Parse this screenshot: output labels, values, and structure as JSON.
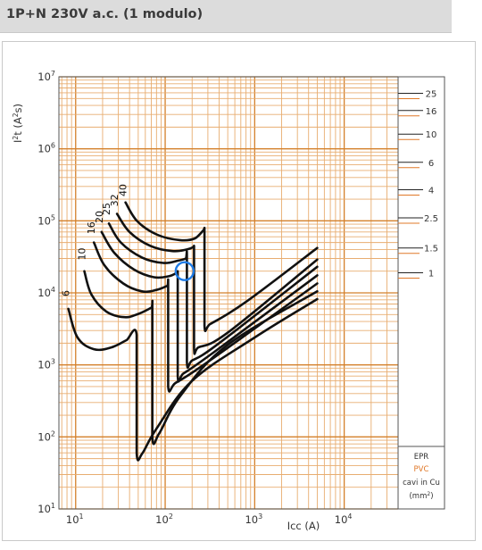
{
  "header": {
    "title": "1P+N 230V a.c. (1 modulo)"
  },
  "chart_data": {
    "type": "line",
    "x_scale": "log",
    "y_scale": "log",
    "xlim": [
      6.5,
      40000
    ],
    "ylim": [
      10,
      10000000
    ],
    "xlabel": "Icc (A)",
    "ylabel_main": "I",
    "ylabel_sup": "2",
    "ylabel_tail": "t (A",
    "ylabel_tail_sup": "2",
    "ylabel_end": "s)",
    "grid": true,
    "x_ticks": [
      {
        "value": 10,
        "base": "10",
        "exp": "1"
      },
      {
        "value": 100,
        "base": "10",
        "exp": "2"
      },
      {
        "value": 1000,
        "base": "10",
        "exp": "3"
      },
      {
        "value": 10000,
        "base": "10",
        "exp": "4"
      }
    ],
    "y_ticks": [
      {
        "value": 10,
        "base": "10",
        "exp": "1"
      },
      {
        "value": 100,
        "base": "10",
        "exp": "2"
      },
      {
        "value": 1000,
        "base": "10",
        "exp": "3"
      },
      {
        "value": 10000,
        "base": "10",
        "exp": "4"
      },
      {
        "value": 100000,
        "base": "10",
        "exp": "5"
      },
      {
        "value": 1000000,
        "base": "10",
        "exp": "6"
      },
      {
        "value": 10000000,
        "base": "10",
        "exp": "7"
      }
    ],
    "series": [
      {
        "name": "6",
        "label_at": [
          8.3,
          8200
        ],
        "points": [
          [
            8.3,
            6000
          ],
          [
            10.5,
            2400
          ],
          [
            16,
            1650
          ],
          [
            25,
            1750
          ],
          [
            37,
            2200
          ],
          [
            48,
            2600
          ],
          [
            48,
            60
          ],
          [
            55,
            58
          ],
          [
            80,
            130
          ],
          [
            200,
            600
          ],
          [
            1000,
            2400
          ],
          [
            5000,
            8200
          ]
        ]
      },
      {
        "name": "10",
        "label_at": [
          12.5,
          26000
        ],
        "points": [
          [
            12.5,
            20000
          ],
          [
            15,
            9500
          ],
          [
            22,
            5500
          ],
          [
            35,
            4600
          ],
          [
            50,
            5100
          ],
          [
            70,
            6200
          ],
          [
            72,
            6200
          ],
          [
            72,
            100
          ],
          [
            85,
            110
          ],
          [
            150,
            380
          ],
          [
            500,
            1900
          ],
          [
            5000,
            10500
          ]
        ]
      },
      {
        "name": "16",
        "label_at": [
          16,
          60000
        ],
        "points": [
          [
            16,
            50000
          ],
          [
            21,
            24000
          ],
          [
            34,
            13500
          ],
          [
            55,
            10500
          ],
          [
            80,
            11000
          ],
          [
            105,
            12500
          ],
          [
            108,
            13000
          ],
          [
            108,
            500
          ],
          [
            130,
            560
          ],
          [
            300,
            1100
          ],
          [
            5000,
            13500
          ]
        ]
      },
      {
        "name": "20",
        "label_at": [
          19.5,
          85000
        ],
        "points": [
          [
            19.5,
            70000
          ],
          [
            27,
            36000
          ],
          [
            45,
            21000
          ],
          [
            75,
            16500
          ],
          [
            110,
            17000
          ],
          [
            135,
            19000
          ],
          [
            138,
            20000
          ],
          [
            138,
            700
          ],
          [
            160,
            760
          ],
          [
            350,
            1500
          ],
          [
            5000,
            17500
          ]
        ]
      },
      {
        "name": "25",
        "label_at": [
          23.5,
          110000
        ],
        "points": [
          [
            23.5,
            92000
          ],
          [
            32,
            50000
          ],
          [
            55,
            31000
          ],
          [
            95,
            26000
          ],
          [
            140,
            28000
          ],
          [
            170,
            30000
          ],
          [
            175,
            32000
          ],
          [
            175,
            1100
          ],
          [
            200,
            1150
          ],
          [
            400,
            2000
          ],
          [
            5000,
            23000
          ]
        ]
      },
      {
        "name": "32",
        "label_at": [
          29,
          145000
        ],
        "points": [
          [
            29,
            125000
          ],
          [
            40,
            70000
          ],
          [
            68,
            45000
          ],
          [
            120,
            38000
          ],
          [
            175,
            40000
          ],
          [
            205,
            43000
          ],
          [
            210,
            45000
          ],
          [
            210,
            1700
          ],
          [
            235,
            1750
          ],
          [
            500,
            2800
          ],
          [
            5000,
            29000
          ]
        ]
      },
      {
        "name": "40",
        "label_at": [
          36,
          200000
        ],
        "points": [
          [
            36,
            180000
          ],
          [
            49,
            98000
          ],
          [
            82,
            64000
          ],
          [
            145,
            54000
          ],
          [
            215,
            57000
          ],
          [
            270,
            75000
          ],
          [
            275,
            80000
          ],
          [
            275,
            3500
          ],
          [
            320,
            3700
          ],
          [
            800,
            7500
          ],
          [
            5000,
            42000
          ]
        ]
      }
    ],
    "annotation": {
      "type": "circle",
      "x": 165,
      "y": 20000
    },
    "cable_scale": {
      "marks": [
        {
          "label": "25",
          "value": 5900000
        },
        {
          "label": "16",
          "value": 3400000
        },
        {
          "label": "10",
          "value": 1600000
        },
        {
          "label": "6",
          "value": 650000
        },
        {
          "label": "4",
          "value": 270000
        },
        {
          "label": "2.5",
          "value": 110000
        },
        {
          "label": "1.5",
          "value": 42000
        },
        {
          "label": "1",
          "value": 19000
        }
      ],
      "legend": {
        "epr": "EPR",
        "pvc": "PVC",
        "cable": "cavi in Cu",
        "unit_open": "(mm",
        "unit_sup": "2",
        "unit_close": ")"
      }
    }
  },
  "colors": {
    "grid": "#d4802a",
    "grid_light": "#e8ad70",
    "curve": "#111111",
    "annotation": "#1e7be6",
    "pvc": "#e07828",
    "axis_text": "#333333"
  }
}
